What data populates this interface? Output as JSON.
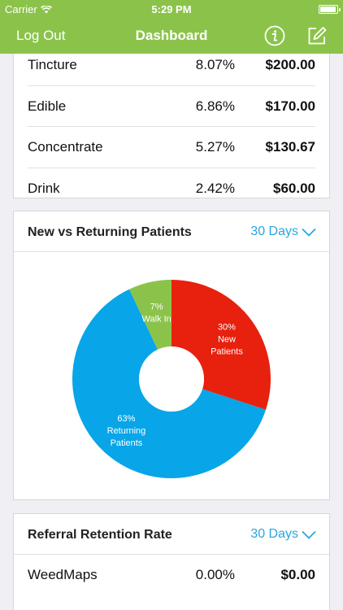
{
  "status_bar": {
    "carrier": "Carrier",
    "time": "5:29 PM"
  },
  "nav": {
    "left_label": "Log Out",
    "title": "Dashboard",
    "info_icon": "info-icon",
    "edit_icon": "edit-icon"
  },
  "product_table": {
    "rows": [
      {
        "name": "Tincture",
        "pct": "8.07%",
        "amount": "$200.00"
      },
      {
        "name": "Edible",
        "pct": "6.86%",
        "amount": "$170.00"
      },
      {
        "name": "Concentrate",
        "pct": "5.27%",
        "amount": "$130.67"
      },
      {
        "name": "Drink",
        "pct": "2.42%",
        "amount": "$60.00"
      }
    ]
  },
  "patients_card": {
    "title": "New vs Returning Patients",
    "range_label": "30 Days"
  },
  "chart_data": {
    "type": "pie",
    "donut": true,
    "slices": [
      {
        "label": "New Patients",
        "value": 30,
        "display": [
          "30%",
          "New",
          "Patients"
        ],
        "color": "#e8200e"
      },
      {
        "label": "Returning Patients",
        "value": 63,
        "display": [
          "63%",
          "Returning",
          "Patients"
        ],
        "color": "#08a5e8"
      },
      {
        "label": "Walk In",
        "value": 7,
        "display": [
          "7%",
          "Walk In"
        ],
        "color": "#8bc34a"
      }
    ]
  },
  "referral_card": {
    "title": "Referral Retention Rate",
    "range_label": "30 Days",
    "rows": [
      {
        "name": "WeedMaps",
        "pct": "0.00%",
        "amount": "$0.00"
      }
    ]
  },
  "colors": {
    "brand": "#8bc34a",
    "link": "#2aa6de"
  }
}
